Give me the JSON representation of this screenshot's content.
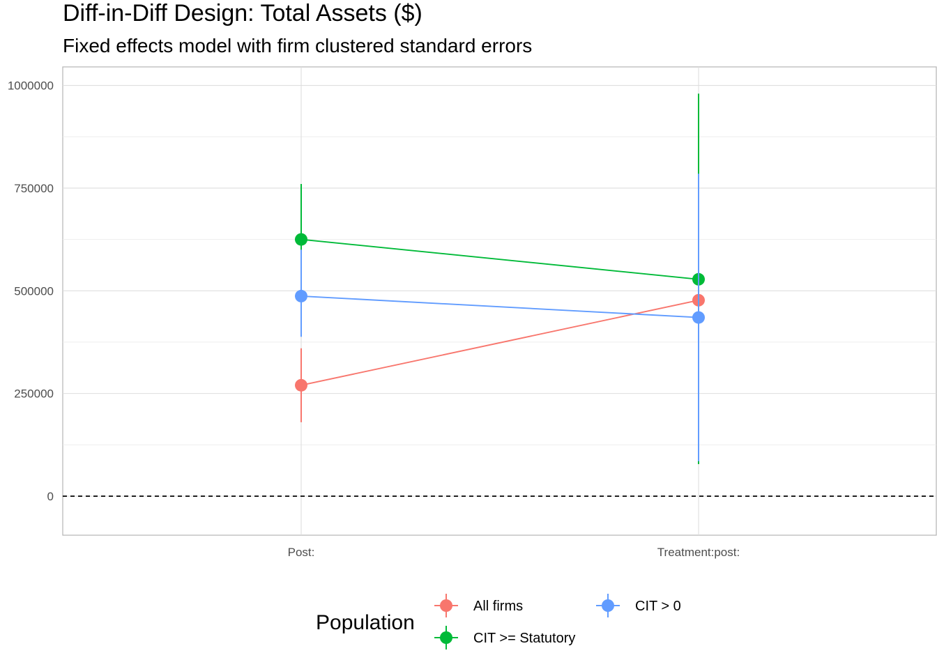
{
  "chart_data": {
    "type": "scatter",
    "title": "Diff-in-Diff Design: Total Assets ($)",
    "subtitle": "Fixed effects model with firm clustered standard errors",
    "categories": [
      "Post:",
      "Treatment:post:"
    ],
    "ylim": [
      -95000,
      1045000
    ],
    "y_ticks": [
      0,
      250000,
      500000,
      750000,
      1000000
    ],
    "y_tick_labels": [
      "0",
      "250000",
      "500000",
      "750000",
      "1000000"
    ],
    "reference_line": {
      "y": 0,
      "style": "dashed"
    },
    "grid": true,
    "legend": {
      "title": "Population",
      "position": "bottom",
      "entries": [
        "All firms",
        "CIT > 0",
        "CIT >= Statutory"
      ]
    },
    "series": [
      {
        "name": "All firms",
        "color": "#F8766D",
        "values": [
          270000,
          477000
        ],
        "lower": [
          180000,
          445000
        ],
        "upper": [
          360000,
          505000
        ]
      },
      {
        "name": "CIT >= Statutory",
        "color": "#00BA38",
        "values": [
          625000,
          528000
        ],
        "lower": [
          590000,
          78000
        ],
        "upper": [
          760000,
          980000
        ]
      },
      {
        "name": "CIT > 0",
        "color": "#619CFF",
        "values": [
          487000,
          435000
        ],
        "lower": [
          388000,
          85000
        ],
        "upper": [
          600000,
          785000
        ]
      }
    ]
  }
}
